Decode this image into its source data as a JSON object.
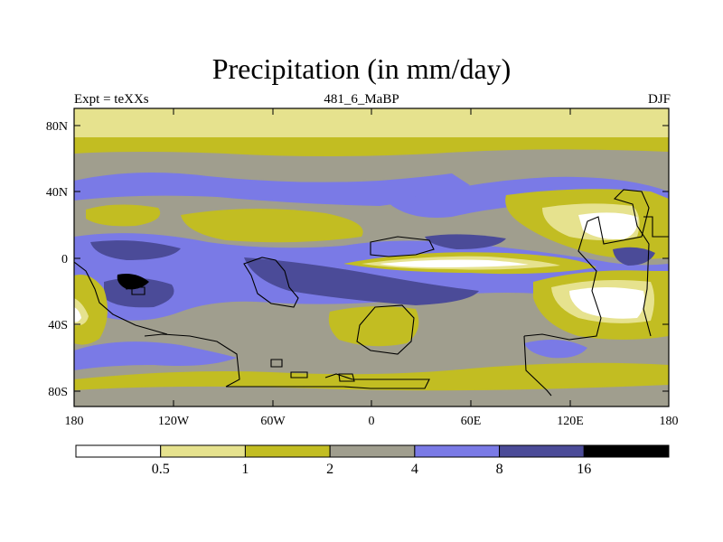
{
  "title": "Precipitation (in mm/day)",
  "subtitle_left": "Expt = teXXs",
  "subtitle_center": "481_6_MaBP",
  "subtitle_right": "DJF",
  "lat_labels": [
    "80N",
    "40N",
    "0",
    "40S",
    "80S"
  ],
  "lon_labels": [
    "180",
    "120W",
    "60W",
    "0",
    "60E",
    "120E",
    "180"
  ],
  "colorbar": {
    "colors": [
      "#ffffff",
      "#e6e28e",
      "#c2bd22",
      "#a09e8e",
      "#7a7ae6",
      "#4b4b98",
      "#000000"
    ],
    "labels": [
      "0.5",
      "1",
      "2",
      "4",
      "8",
      "16"
    ]
  }
}
